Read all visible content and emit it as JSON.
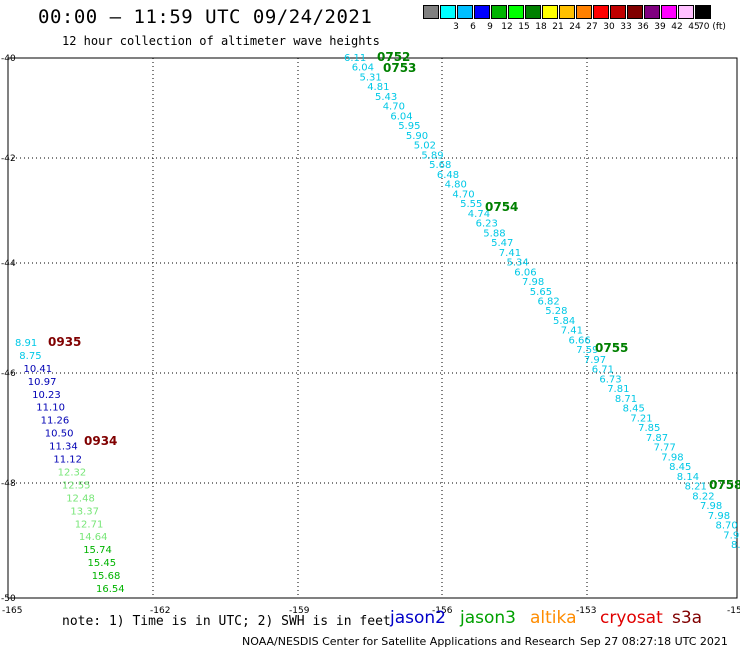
{
  "header": {
    "title": "00:00 – 11:59 UTC 09/24/2021",
    "subtitle": "12 hour collection of altimeter wave heights"
  },
  "legend": {
    "colors": [
      "#808080",
      "#00ffff",
      "#00bfff",
      "#0000ff",
      "#00b400",
      "#00ff00",
      "#008000",
      "#ffff00",
      "#ffc000",
      "#ff8000",
      "#ff0000",
      "#c00000",
      "#800000",
      "#800080",
      "#ff00ff",
      "#ffc0ff",
      "#000000"
    ],
    "labels": [
      "",
      "3",
      "6",
      "9",
      "12",
      "15",
      "18",
      "21",
      "24",
      "27",
      "30",
      "33",
      "36",
      "39",
      "42",
      "45",
      "70 (ft)"
    ]
  },
  "axes": {
    "lat_labels": [
      "-40",
      "-42",
      "-44",
      "-46",
      "-48",
      "-50"
    ],
    "lon_labels": [
      "-165",
      "-162",
      "-159",
      "-156",
      "-153",
      "-150"
    ]
  },
  "colors": {
    "cyan": "#00c8e6",
    "darkblue": "#0000b4",
    "lightgreen": "#78e678",
    "green": "#00b400",
    "darkgreen": "#008000",
    "darkred": "#800000"
  },
  "tracks": {
    "east": {
      "values": [
        "6.11",
        "6.04",
        "5.31",
        "4.81",
        "5.43",
        "4.70",
        "6.04",
        "5.95",
        "5.90",
        "5.02",
        "5.89",
        "5.68",
        "6.48",
        "4.80",
        "4.70",
        "5.55",
        "4.74",
        "6.23",
        "5.88",
        "5.47",
        "7.41",
        "5.34",
        "6.06",
        "7.98",
        "5.65",
        "6.82",
        "5.28",
        "5.84",
        "7.41",
        "6.66",
        "7.59",
        "7.97",
        "6.71",
        "6.73",
        "7.81",
        "8.71",
        "8.45",
        "7.21",
        "7.85",
        "7.87",
        "7.77",
        "7.98",
        "8.45",
        "8.14",
        "8.21",
        "8.22",
        "7.98",
        "7.98",
        "8.70",
        "7.99",
        "8."
      ],
      "times": [
        "0752",
        "0753",
        "0754",
        "0755",
        "0758"
      ]
    },
    "west": {
      "values": [
        "8.91",
        "8.75",
        "10.41",
        "10.97",
        "10.23",
        "11.10",
        "11.26",
        "10.50",
        "11.34",
        "11.12",
        "12.32",
        "12.55",
        "12.48",
        "13.37",
        "12.71",
        "14.64",
        "15.74",
        "15.45",
        "15.68",
        "16.54"
      ],
      "times": [
        "0935",
        "0934"
      ]
    }
  },
  "note": {
    "text": "note: 1) Time is in UTC; 2) SWH is in feet",
    "satellites": [
      "jason2",
      "jason3",
      "altika",
      "cryosat",
      "s3a"
    ]
  },
  "footer": {
    "left": "NOAA/NESDIS Center for Satellite Applications and Research",
    "right": "Sep 27 08:27:18 UTC 2021"
  }
}
